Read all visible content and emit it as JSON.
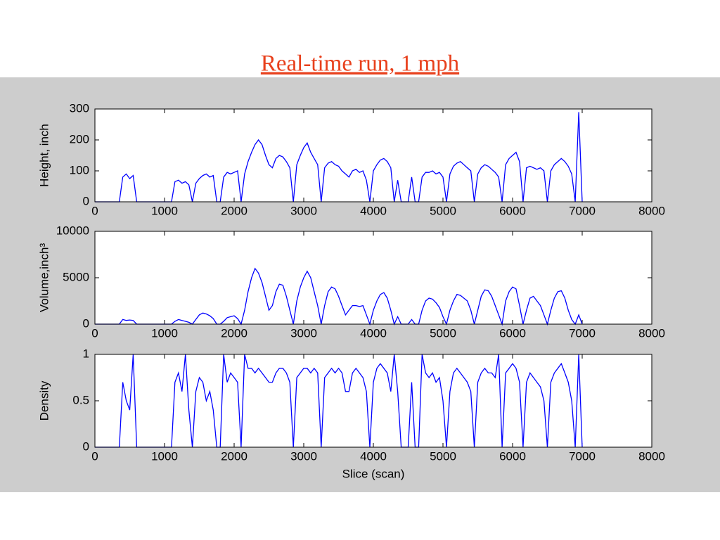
{
  "title": "Real-time run, 1 mph",
  "chart_data": [
    {
      "type": "line",
      "ylabel": "Height, inch",
      "color": "#0000ff",
      "xlim": [
        0,
        8000
      ],
      "xticks": [
        0,
        1000,
        2000,
        3000,
        4000,
        5000,
        6000,
        7000,
        8000
      ],
      "ylim": [
        0,
        300
      ],
      "yticks": [
        0,
        100,
        200,
        300
      ],
      "x": [
        0,
        50,
        100,
        150,
        200,
        250,
        300,
        350,
        400,
        450,
        500,
        550,
        600,
        650,
        700,
        750,
        800,
        850,
        900,
        950,
        1000,
        1050,
        1100,
        1150,
        1200,
        1250,
        1300,
        1350,
        1400,
        1450,
        1500,
        1550,
        1600,
        1650,
        1700,
        1750,
        1800,
        1850,
        1900,
        1950,
        2000,
        2050,
        2100,
        2150,
        2200,
        2250,
        2300,
        2350,
        2400,
        2450,
        2500,
        2550,
        2600,
        2650,
        2700,
        2750,
        2800,
        2850,
        2900,
        2950,
        3000,
        3050,
        3100,
        3150,
        3200,
        3250,
        3300,
        3350,
        3400,
        3450,
        3500,
        3550,
        3600,
        3650,
        3700,
        3750,
        3800,
        3850,
        3900,
        3950,
        4000,
        4050,
        4100,
        4150,
        4200,
        4250,
        4300,
        4350,
        4400,
        4450,
        4500,
        4550,
        4600,
        4650,
        4700,
        4750,
        4800,
        4850,
        4900,
        4950,
        5000,
        5050,
        5100,
        5150,
        5200,
        5250,
        5300,
        5350,
        5400,
        5450,
        5500,
        5550,
        5600,
        5650,
        5700,
        5750,
        5800,
        5850,
        5900,
        5950,
        6000,
        6050,
        6100,
        6150,
        6200,
        6250,
        6300,
        6350,
        6400,
        6450,
        6500,
        6550,
        6600,
        6650,
        6700,
        6750,
        6800,
        6850,
        6900,
        6950,
        7000
      ],
      "values": [
        0,
        0,
        0,
        0,
        0,
        0,
        0,
        0,
        80,
        90,
        75,
        85,
        0,
        0,
        0,
        0,
        0,
        0,
        0,
        0,
        0,
        0,
        0,
        65,
        70,
        60,
        65,
        55,
        0,
        60,
        75,
        85,
        90,
        80,
        85,
        0,
        0,
        80,
        95,
        90,
        95,
        100,
        0,
        90,
        130,
        160,
        185,
        200,
        185,
        150,
        120,
        110,
        140,
        150,
        145,
        130,
        110,
        0,
        120,
        150,
        175,
        190,
        160,
        140,
        120,
        0,
        110,
        125,
        130,
        120,
        115,
        100,
        90,
        80,
        100,
        105,
        95,
        100,
        70,
        0,
        100,
        120,
        135,
        140,
        130,
        110,
        0,
        70,
        0,
        0,
        0,
        80,
        0,
        0,
        80,
        95,
        95,
        100,
        90,
        95,
        80,
        0,
        90,
        115,
        125,
        130,
        120,
        110,
        100,
        0,
        90,
        110,
        120,
        115,
        105,
        95,
        80,
        0,
        120,
        140,
        150,
        160,
        130,
        0,
        110,
        115,
        110,
        105,
        110,
        100,
        0,
        100,
        120,
        130,
        140,
        130,
        115,
        90,
        0,
        290,
        0
      ]
    },
    {
      "type": "line",
      "ylabel": "Volume,inch³",
      "color": "#0000ff",
      "xlim": [
        0,
        8000
      ],
      "xticks": [
        0,
        1000,
        2000,
        3000,
        4000,
        5000,
        6000,
        7000,
        8000
      ],
      "ylim": [
        0,
        10000
      ],
      "yticks": [
        0,
        5000,
        10000
      ],
      "x": [
        0,
        50,
        100,
        150,
        200,
        250,
        300,
        350,
        400,
        450,
        500,
        550,
        600,
        650,
        700,
        750,
        800,
        850,
        900,
        950,
        1000,
        1050,
        1100,
        1150,
        1200,
        1250,
        1300,
        1350,
        1400,
        1450,
        1500,
        1550,
        1600,
        1650,
        1700,
        1750,
        1800,
        1850,
        1900,
        1950,
        2000,
        2050,
        2100,
        2150,
        2200,
        2250,
        2300,
        2350,
        2400,
        2450,
        2500,
        2550,
        2600,
        2650,
        2700,
        2750,
        2800,
        2850,
        2900,
        2950,
        3000,
        3050,
        3100,
        3150,
        3200,
        3250,
        3300,
        3350,
        3400,
        3450,
        3500,
        3550,
        3600,
        3650,
        3700,
        3750,
        3800,
        3850,
        3900,
        3950,
        4000,
        4050,
        4100,
        4150,
        4200,
        4250,
        4300,
        4350,
        4400,
        4450,
        4500,
        4550,
        4600,
        4650,
        4700,
        4750,
        4800,
        4850,
        4900,
        4950,
        5000,
        5050,
        5100,
        5150,
        5200,
        5250,
        5300,
        5350,
        5400,
        5450,
        5500,
        5550,
        5600,
        5650,
        5700,
        5750,
        5800,
        5850,
        5900,
        5950,
        6000,
        6050,
        6100,
        6150,
        6200,
        6250,
        6300,
        6350,
        6400,
        6450,
        6500,
        6550,
        6600,
        6650,
        6700,
        6750,
        6800,
        6850,
        6900,
        6950,
        7000
      ],
      "values": [
        0,
        0,
        0,
        0,
        0,
        0,
        0,
        0,
        500,
        400,
        450,
        400,
        0,
        0,
        0,
        0,
        0,
        0,
        0,
        0,
        0,
        0,
        0,
        300,
        500,
        400,
        300,
        200,
        0,
        500,
        1000,
        1200,
        1100,
        900,
        600,
        0,
        0,
        300,
        700,
        800,
        900,
        600,
        0,
        1500,
        3500,
        5000,
        6000,
        5500,
        4500,
        3000,
        1500,
        2000,
        3500,
        4300,
        4200,
        3000,
        1500,
        0,
        2500,
        4000,
        5000,
        5700,
        5000,
        3500,
        2000,
        0,
        2000,
        3500,
        4000,
        3800,
        3000,
        2000,
        1000,
        1500,
        2000,
        2000,
        1900,
        2000,
        1000,
        0,
        1500,
        2500,
        3200,
        3400,
        2800,
        1500,
        0,
        800,
        0,
        0,
        0,
        500,
        0,
        0,
        1500,
        2500,
        2800,
        2700,
        2300,
        1800,
        800,
        0,
        1500,
        2500,
        3200,
        3100,
        2800,
        2500,
        1500,
        0,
        1500,
        3000,
        3700,
        3600,
        3000,
        2000,
        1000,
        0,
        2500,
        3500,
        4000,
        3800,
        2000,
        0,
        1500,
        2800,
        3000,
        2500,
        2000,
        1000,
        0,
        1500,
        2800,
        3500,
        3600,
        2800,
        1500,
        500,
        0,
        1000,
        0
      ]
    },
    {
      "type": "line",
      "ylabel": "Density",
      "xlabel": "Slice (scan)",
      "color": "#0000ff",
      "xlim": [
        0,
        8000
      ],
      "xticks": [
        0,
        1000,
        2000,
        3000,
        4000,
        5000,
        6000,
        7000,
        8000
      ],
      "ylim": [
        0,
        1
      ],
      "yticks": [
        0,
        0.5,
        1
      ],
      "x": [
        0,
        50,
        100,
        150,
        200,
        250,
        300,
        350,
        400,
        450,
        500,
        550,
        600,
        650,
        700,
        750,
        800,
        850,
        900,
        950,
        1000,
        1050,
        1100,
        1150,
        1200,
        1250,
        1300,
        1350,
        1400,
        1450,
        1500,
        1550,
        1600,
        1650,
        1700,
        1750,
        1800,
        1850,
        1900,
        1950,
        2000,
        2050,
        2100,
        2150,
        2200,
        2250,
        2300,
        2350,
        2400,
        2450,
        2500,
        2550,
        2600,
        2650,
        2700,
        2750,
        2800,
        2850,
        2900,
        2950,
        3000,
        3050,
        3100,
        3150,
        3200,
        3250,
        3300,
        3350,
        3400,
        3450,
        3500,
        3550,
        3600,
        3650,
        3700,
        3750,
        3800,
        3850,
        3900,
        3950,
        4000,
        4050,
        4100,
        4150,
        4200,
        4250,
        4300,
        4350,
        4400,
        4450,
        4500,
        4550,
        4600,
        4650,
        4700,
        4750,
        4800,
        4850,
        4900,
        4950,
        5000,
        5050,
        5100,
        5150,
        5200,
        5250,
        5300,
        5350,
        5400,
        5450,
        5500,
        5550,
        5600,
        5650,
        5700,
        5750,
        5800,
        5850,
        5900,
        5950,
        6000,
        6050,
        6100,
        6150,
        6200,
        6250,
        6300,
        6350,
        6400,
        6450,
        6500,
        6550,
        6600,
        6650,
        6700,
        6750,
        6800,
        6850,
        6900,
        6950,
        7000
      ],
      "values": [
        0,
        0,
        0,
        0,
        0,
        0,
        0,
        0,
        0.7,
        0.5,
        0.4,
        1.0,
        0,
        0,
        0,
        0,
        0,
        0,
        0,
        0,
        0,
        0,
        0,
        0.7,
        0.8,
        0.6,
        1.0,
        0.4,
        0,
        0.6,
        0.75,
        0.7,
        0.5,
        0.6,
        0.4,
        0,
        0,
        1.0,
        0.7,
        0.8,
        0.75,
        0.7,
        0,
        1.0,
        0.85,
        0.85,
        0.8,
        0.85,
        0.8,
        0.75,
        0.7,
        0.7,
        0.8,
        0.85,
        0.85,
        0.8,
        0.7,
        0,
        0.75,
        0.8,
        0.85,
        0.85,
        0.8,
        0.85,
        0.8,
        0,
        0.75,
        0.8,
        0.85,
        0.8,
        0.85,
        0.8,
        0.6,
        0.6,
        0.8,
        0.85,
        0.8,
        0.75,
        0.6,
        0,
        0.7,
        0.85,
        0.9,
        0.85,
        0.8,
        0.6,
        1.0,
        0.6,
        0,
        0,
        0,
        0.7,
        0,
        0,
        1.0,
        0.8,
        0.75,
        0.8,
        0.7,
        0.75,
        0.5,
        0,
        0.6,
        0.8,
        0.85,
        0.8,
        0.75,
        0.7,
        0.6,
        0,
        0.7,
        0.8,
        0.85,
        0.8,
        0.8,
        0.75,
        1.0,
        0,
        0.8,
        0.85,
        0.9,
        0.85,
        0.7,
        0,
        0.7,
        0.8,
        0.75,
        0.7,
        0.65,
        0.5,
        0,
        0.7,
        0.8,
        0.85,
        0.9,
        0.8,
        0.7,
        0.5,
        0,
        1.0,
        0
      ]
    }
  ]
}
